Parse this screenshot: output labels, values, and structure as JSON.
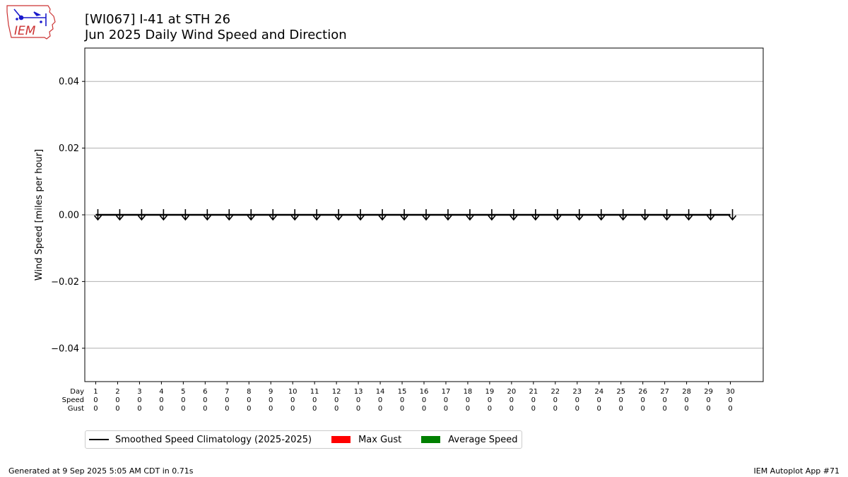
{
  "header": {
    "title": "[WI067] I-41 at STH 26",
    "subtitle": "Jun 2025 Daily Wind Speed and Direction"
  },
  "logo": {
    "text": "IEM",
    "outline_color": "#cc3333",
    "icon_color": "#1a1acc"
  },
  "footer": {
    "generated": "Generated at 9 Sep 2025 5:05 AM CDT in 0.71s",
    "app": "IEM Autoplot App #71"
  },
  "legend": [
    {
      "label": "Smoothed Speed Climatology (2025-2025)",
      "kind": "line",
      "color": "#000000"
    },
    {
      "label": "Max Gust",
      "kind": "rect",
      "color": "#ff0000"
    },
    {
      "label": "Average Speed",
      "kind": "rect",
      "color": "#008000"
    }
  ],
  "chart_data": {
    "type": "bar",
    "ylabel": "Wind Speed [miles per hour]",
    "ylim": [
      -0.05,
      0.05
    ],
    "yticks": [
      0.04,
      0.02,
      0.0,
      -0.02,
      -0.04
    ],
    "ytick_labels": [
      "0.04",
      "0.02",
      "0.00",
      "−0.02",
      "−0.04"
    ],
    "grid": "horizontal",
    "xlim": [
      0.5,
      31.5
    ],
    "table_row_labels": [
      "Day",
      "Speed",
      "Gust"
    ],
    "days": [
      1,
      2,
      3,
      4,
      5,
      6,
      7,
      8,
      9,
      10,
      11,
      12,
      13,
      14,
      15,
      16,
      17,
      18,
      19,
      20,
      21,
      22,
      23,
      24,
      25,
      26,
      27,
      28,
      29,
      30
    ],
    "speed": [
      0,
      0,
      0,
      0,
      0,
      0,
      0,
      0,
      0,
      0,
      0,
      0,
      0,
      0,
      0,
      0,
      0,
      0,
      0,
      0,
      0,
      0,
      0,
      0,
      0,
      0,
      0,
      0,
      0,
      0
    ],
    "gust": [
      0,
      0,
      0,
      0,
      0,
      0,
      0,
      0,
      0,
      0,
      0,
      0,
      0,
      0,
      0,
      0,
      0,
      0,
      0,
      0,
      0,
      0,
      0,
      0,
      0,
      0,
      0,
      0,
      0,
      0
    ],
    "direction_arrows": "down",
    "series": [
      {
        "name": "Smoothed Speed Climatology (2025-2025)",
        "values": [
          0,
          0,
          0,
          0,
          0,
          0,
          0,
          0,
          0,
          0,
          0,
          0,
          0,
          0,
          0,
          0,
          0,
          0,
          0,
          0,
          0,
          0,
          0,
          0,
          0,
          0,
          0,
          0,
          0,
          0
        ]
      },
      {
        "name": "Max Gust",
        "values": [
          0,
          0,
          0,
          0,
          0,
          0,
          0,
          0,
          0,
          0,
          0,
          0,
          0,
          0,
          0,
          0,
          0,
          0,
          0,
          0,
          0,
          0,
          0,
          0,
          0,
          0,
          0,
          0,
          0,
          0
        ]
      },
      {
        "name": "Average Speed",
        "values": [
          0,
          0,
          0,
          0,
          0,
          0,
          0,
          0,
          0,
          0,
          0,
          0,
          0,
          0,
          0,
          0,
          0,
          0,
          0,
          0,
          0,
          0,
          0,
          0,
          0,
          0,
          0,
          0,
          0,
          0
        ]
      }
    ]
  }
}
